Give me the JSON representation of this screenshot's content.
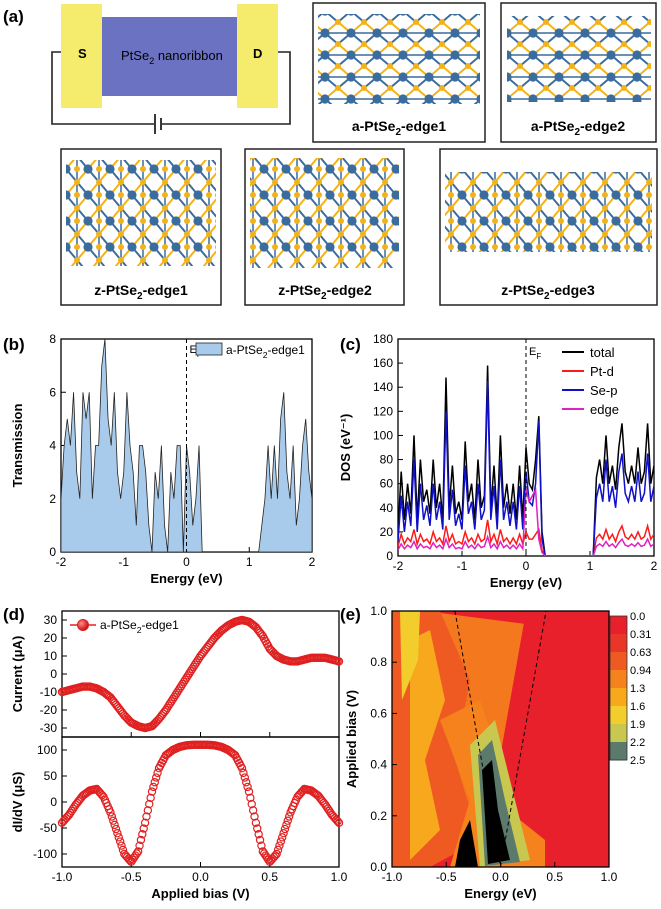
{
  "panels": {
    "a": "(a)",
    "b": "(b)",
    "c": "(c)",
    "d": "(d)",
    "e": "(e)"
  },
  "device": {
    "source": "S",
    "drain": "D",
    "channel": "PtSe2 nanoribbon",
    "channel_main": "PtSe",
    "channel_sub": "2",
    "channel_rest": " nanoribbon"
  },
  "structures": [
    {
      "pre": "a-PtSe",
      "sub": "2",
      "post": "-edge1"
    },
    {
      "pre": "a-PtSe",
      "sub": "2",
      "post": "-edge2"
    },
    {
      "pre": "z-PtSe",
      "sub": "2",
      "post": "-edge1"
    },
    {
      "pre": "z-PtSe",
      "sub": "2",
      "post": "-edge2"
    },
    {
      "pre": "z-PtSe",
      "sub": "2",
      "post": "-edge3"
    }
  ],
  "colors": {
    "pt_atom": "#3a6c9e",
    "se_atom": "#f2b21a",
    "electrode": "#f5ec6e",
    "channel": "#6b72c2",
    "transmission_fill": "#a9cbeb",
    "total": "#000000",
    "pt_d": "#ff1a1a",
    "se_p": "#1010c8",
    "edge": "#e020c0",
    "current": "#e02020"
  },
  "chart_data": [
    {
      "id": "b",
      "type": "area",
      "title": "",
      "xlabel": "Energy (eV)",
      "ylabel": "Transmission",
      "xlim": [
        -2,
        2
      ],
      "ylim": [
        0,
        8
      ],
      "xticks": [
        -2,
        -1,
        0,
        1,
        2
      ],
      "yticks": [
        0,
        2,
        4,
        6,
        8
      ],
      "fermi_label": "E",
      "fermi_sub": "F",
      "legend": {
        "pre": "a-PtSe",
        "sub": "2",
        "post": "-edge1",
        "position": "top-right"
      },
      "x": [
        -2.0,
        -1.95,
        -1.9,
        -1.85,
        -1.8,
        -1.75,
        -1.7,
        -1.65,
        -1.6,
        -1.55,
        -1.5,
        -1.45,
        -1.4,
        -1.35,
        -1.3,
        -1.25,
        -1.2,
        -1.15,
        -1.1,
        -1.05,
        -1.0,
        -0.95,
        -0.9,
        -0.85,
        -0.8,
        -0.75,
        -0.7,
        -0.65,
        -0.6,
        -0.55,
        -0.5,
        -0.45,
        -0.4,
        -0.35,
        -0.3,
        -0.25,
        -0.2,
        -0.15,
        -0.1,
        -0.05,
        0.0,
        0.05,
        0.1,
        0.15,
        0.2,
        0.25,
        0.3,
        0.35,
        0.4,
        0.45,
        0.5,
        0.55,
        0.6,
        0.65,
        0.7,
        0.75,
        0.8,
        0.85,
        0.9,
        0.95,
        1.0,
        1.05,
        1.1,
        1.15,
        1.2,
        1.25,
        1.3,
        1.35,
        1.4,
        1.45,
        1.5,
        1.55,
        1.6,
        1.65,
        1.7,
        1.75,
        1.8,
        1.85,
        1.9,
        1.95,
        2.0
      ],
      "values": [
        2,
        4,
        5,
        4,
        6,
        3,
        2,
        6,
        5,
        6,
        2,
        4,
        4,
        7,
        8,
        5,
        4,
        6,
        3,
        2,
        3,
        6,
        4,
        3,
        1,
        4,
        4,
        3,
        1,
        0,
        3,
        2,
        4,
        1,
        0,
        3,
        2,
        4,
        4,
        0,
        4,
        3,
        1,
        2,
        4,
        0,
        0,
        0,
        0,
        0,
        0,
        0,
        0,
        0,
        0,
        0,
        0,
        0,
        0,
        0,
        0,
        0,
        0,
        0,
        1,
        2,
        4,
        2,
        4,
        2,
        5,
        6,
        3,
        2,
        4,
        1,
        2,
        4,
        5,
        3,
        2
      ]
    },
    {
      "id": "c",
      "type": "line",
      "title": "",
      "xlabel": "Energy (eV)",
      "ylabel": "DOS (eV⁻¹)",
      "xlim": [
        -2,
        2
      ],
      "ylim": [
        0,
        180
      ],
      "xticks": [
        -2,
        -1,
        0,
        1,
        2
      ],
      "yticks": [
        0,
        20,
        40,
        60,
        80,
        100,
        120,
        140,
        160,
        180
      ],
      "fermi_label": "E",
      "fermi_sub": "F",
      "legend_position": "top-right",
      "x": [
        -2.0,
        -1.95,
        -1.9,
        -1.85,
        -1.8,
        -1.75,
        -1.7,
        -1.65,
        -1.6,
        -1.55,
        -1.5,
        -1.45,
        -1.4,
        -1.35,
        -1.3,
        -1.25,
        -1.2,
        -1.15,
        -1.1,
        -1.05,
        -1.0,
        -0.95,
        -0.9,
        -0.85,
        -0.8,
        -0.75,
        -0.7,
        -0.65,
        -0.6,
        -0.55,
        -0.5,
        -0.45,
        -0.4,
        -0.35,
        -0.3,
        -0.25,
        -0.2,
        -0.15,
        -0.1,
        -0.05,
        0.0,
        0.05,
        0.1,
        0.15,
        0.2,
        0.25,
        0.3,
        0.35,
        0.4,
        0.45,
        0.5,
        0.55,
        0.6,
        0.65,
        0.7,
        0.75,
        0.8,
        0.85,
        0.9,
        0.95,
        1.0,
        1.05,
        1.1,
        1.15,
        1.2,
        1.25,
        1.3,
        1.35,
        1.4,
        1.45,
        1.5,
        1.55,
        1.6,
        1.65,
        1.7,
        1.75,
        1.8,
        1.85,
        1.9,
        1.95,
        2.0
      ],
      "series": [
        {
          "name": "total",
          "color": "#000000",
          "values": [
            20,
            70,
            30,
            60,
            35,
            100,
            30,
            80,
            45,
            55,
            35,
            80,
            40,
            60,
            30,
            148,
            40,
            75,
            35,
            45,
            30,
            95,
            45,
            60,
            30,
            80,
            40,
            50,
            158,
            40,
            75,
            30,
            100,
            40,
            60,
            35,
            60,
            30,
            75,
            30,
            90,
            60,
            55,
            80,
            116,
            20,
            0,
            0,
            0,
            0,
            0,
            0,
            0,
            0,
            0,
            0,
            0,
            0,
            0,
            0,
            0,
            0,
            65,
            80,
            60,
            100,
            60,
            75,
            55,
            90,
            110,
            70,
            60,
            75,
            60,
            90,
            60,
            70,
            110,
            60,
            75
          ]
        },
        {
          "name": "Pt-d",
          "color": "#ff1a1a",
          "values": [
            8,
            18,
            10,
            15,
            12,
            22,
            10,
            18,
            12,
            14,
            10,
            20,
            12,
            15,
            10,
            25,
            12,
            18,
            10,
            12,
            10,
            20,
            12,
            15,
            10,
            18,
            12,
            14,
            30,
            12,
            18,
            10,
            22,
            12,
            15,
            10,
            15,
            10,
            18,
            10,
            20,
            14,
            14,
            18,
            22,
            5,
            0,
            0,
            0,
            0,
            0,
            0,
            0,
            0,
            0,
            0,
            0,
            0,
            0,
            0,
            0,
            0,
            15,
            18,
            14,
            22,
            14,
            18,
            12,
            20,
            25,
            16,
            14,
            18,
            14,
            20,
            14,
            16,
            25,
            14,
            18
          ]
        },
        {
          "name": "Se-p",
          "color": "#1010c8",
          "values": [
            12,
            50,
            20,
            45,
            25,
            80,
            20,
            60,
            30,
            42,
            25,
            60,
            30,
            45,
            22,
            120,
            30,
            55,
            25,
            35,
            22,
            75,
            35,
            45,
            22,
            60,
            30,
            38,
            145,
            30,
            58,
            22,
            80,
            30,
            45,
            25,
            45,
            22,
            58,
            22,
            70,
            45,
            42,
            60,
            112,
            14,
            0,
            0,
            0,
            0,
            0,
            0,
            0,
            0,
            0,
            0,
            0,
            0,
            0,
            0,
            0,
            0,
            48,
            60,
            45,
            80,
            45,
            58,
            40,
            70,
            85,
            52,
            45,
            58,
            45,
            70,
            45,
            52,
            85,
            45,
            58
          ]
        },
        {
          "name": "edge",
          "color": "#e020c0",
          "values": [
            5,
            10,
            6,
            9,
            7,
            12,
            6,
            10,
            7,
            8,
            6,
            11,
            7,
            9,
            6,
            14,
            7,
            10,
            6,
            7,
            6,
            12,
            7,
            9,
            6,
            10,
            7,
            8,
            16,
            7,
            10,
            6,
            12,
            7,
            9,
            6,
            9,
            6,
            10,
            6,
            55,
            45,
            50,
            55,
            14,
            3,
            0,
            0,
            0,
            0,
            0,
            0,
            0,
            0,
            0,
            0,
            0,
            0,
            0,
            0,
            0,
            0,
            8,
            10,
            8,
            12,
            8,
            10,
            7,
            11,
            14,
            9,
            8,
            10,
            8,
            11,
            8,
            9,
            14,
            8,
            10
          ]
        }
      ]
    },
    {
      "id": "d-top",
      "type": "scatter",
      "title": "",
      "xlabel": "",
      "ylabel": "Current (μA)",
      "xlim": [
        -1,
        1
      ],
      "ylim": [
        -35,
        35
      ],
      "xticks": [
        -1.0,
        -0.5,
        0.0,
        0.5,
        1.0
      ],
      "yticks": [
        -30,
        -20,
        -10,
        0,
        10,
        20,
        30
      ],
      "legend": {
        "pre": "a-PtSe",
        "sub": "2",
        "post": "-edge1",
        "position": "top-left"
      },
      "x": [
        -1.0,
        -0.95,
        -0.9,
        -0.85,
        -0.8,
        -0.75,
        -0.7,
        -0.65,
        -0.6,
        -0.55,
        -0.5,
        -0.45,
        -0.4,
        -0.35,
        -0.3,
        -0.25,
        -0.2,
        -0.15,
        -0.1,
        -0.05,
        0.0,
        0.05,
        0.1,
        0.15,
        0.2,
        0.25,
        0.3,
        0.35,
        0.4,
        0.45,
        0.5,
        0.55,
        0.6,
        0.65,
        0.7,
        0.75,
        0.8,
        0.85,
        0.9,
        0.95,
        1.0
      ],
      "values": [
        -10,
        -9,
        -8,
        -7,
        -7,
        -8,
        -10,
        -13,
        -18,
        -23,
        -27,
        -29,
        -30,
        -29,
        -25,
        -20,
        -14,
        -8,
        -2,
        4,
        10,
        15,
        20,
        24,
        27,
        29,
        30,
        29,
        26,
        21,
        14,
        10,
        8,
        7,
        7,
        8,
        9,
        9,
        9,
        8,
        7
      ]
    },
    {
      "id": "d-bottom",
      "type": "scatter",
      "title": "",
      "xlabel": "Applied bias (V)",
      "ylabel": "dI/dV (μS)",
      "xlim": [
        -1,
        1
      ],
      "ylim": [
        -125,
        125
      ],
      "xticks": [
        -1.0,
        -0.5,
        0.0,
        0.5,
        1.0
      ],
      "xtick_labels": [
        "-1.0",
        "-0.5",
        "0.0",
        "0.5",
        "1.0"
      ],
      "yticks": [
        -100,
        -50,
        0,
        50,
        100
      ],
      "x": [
        -1.0,
        -0.95,
        -0.9,
        -0.85,
        -0.8,
        -0.75,
        -0.7,
        -0.65,
        -0.6,
        -0.55,
        -0.5,
        -0.45,
        -0.4,
        -0.35,
        -0.3,
        -0.25,
        -0.2,
        -0.15,
        -0.1,
        -0.05,
        0.0,
        0.05,
        0.1,
        0.15,
        0.2,
        0.25,
        0.3,
        0.35,
        0.4,
        0.45,
        0.5,
        0.55,
        0.6,
        0.65,
        0.7,
        0.75,
        0.8,
        0.85,
        0.9,
        0.95,
        1.0
      ],
      "values": [
        -40,
        -25,
        -5,
        12,
        22,
        25,
        10,
        -20,
        -60,
        -100,
        -115,
        -95,
        -40,
        20,
        65,
        90,
        100,
        106,
        109,
        110,
        110,
        110,
        109,
        106,
        100,
        90,
        65,
        20,
        -40,
        -95,
        -115,
        -100,
        -60,
        -20,
        10,
        25,
        22,
        12,
        -5,
        -25,
        -40
      ]
    },
    {
      "id": "e",
      "type": "heatmap",
      "title": "",
      "xlabel": "Energy (eV)",
      "ylabel": "Applied bias (V)",
      "xlim": [
        -1,
        1
      ],
      "ylim": [
        0,
        1
      ],
      "xticks": [
        -1.0,
        -0.5,
        0.0,
        0.5,
        1.0
      ],
      "xtick_labels": [
        "-1.0",
        "-0.5",
        "0.0",
        "0.5",
        "1.0"
      ],
      "yticks": [
        0.0,
        0.2,
        0.4,
        0.6,
        0.8,
        1.0
      ],
      "ytick_labels": [
        "0.0",
        "0.2",
        "0.4",
        "0.6",
        "0.8",
        "1.0"
      ],
      "colorbar_labels": [
        "0.0",
        "0.31",
        "0.63",
        "0.94",
        "1.3",
        "1.6",
        "1.9",
        "2.2",
        "2.5"
      ],
      "colorbar_colors": [
        "#e8202c",
        "#ea3628",
        "#ef5a22",
        "#f5821c",
        "#f7a81c",
        "#f3cd2c",
        "#c8c850",
        "#5c7a6c",
        "#000000"
      ],
      "window_lines": [
        {
          "from": [
            -0.42,
            1.0
          ],
          "to": [
            0.0,
            0.0
          ]
        },
        {
          "from": [
            0.0,
            0.0
          ],
          "to": [
            0.42,
            1.0
          ]
        }
      ]
    }
  ]
}
